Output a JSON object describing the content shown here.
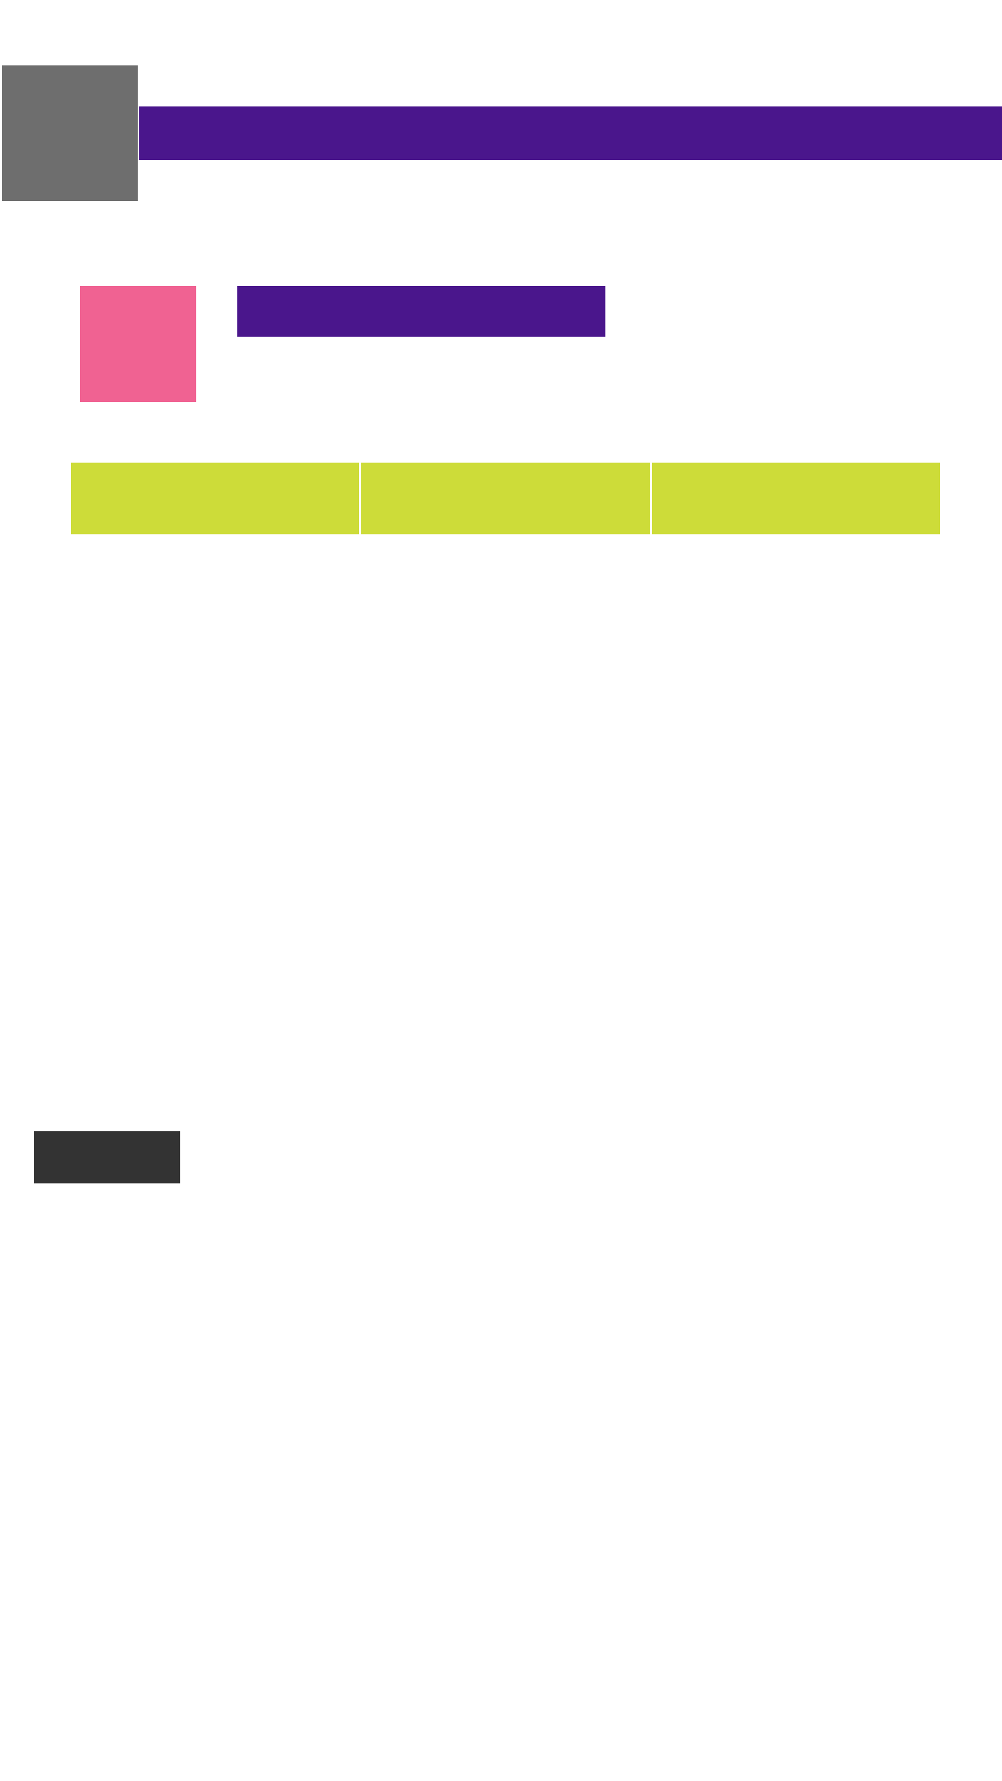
{
  "header": {
    "title": "",
    "image_color": "#6e6e6e",
    "bar_color": "#4a168c"
  },
  "card": {
    "title": "",
    "image_color": "#f06292",
    "title_bar_color": "#4a168c"
  },
  "tabs": [
    {
      "label": ""
    },
    {
      "label": ""
    },
    {
      "label": ""
    }
  ],
  "tab_color": "#cddc39",
  "action_button": {
    "label": "",
    "color": "#333333"
  }
}
